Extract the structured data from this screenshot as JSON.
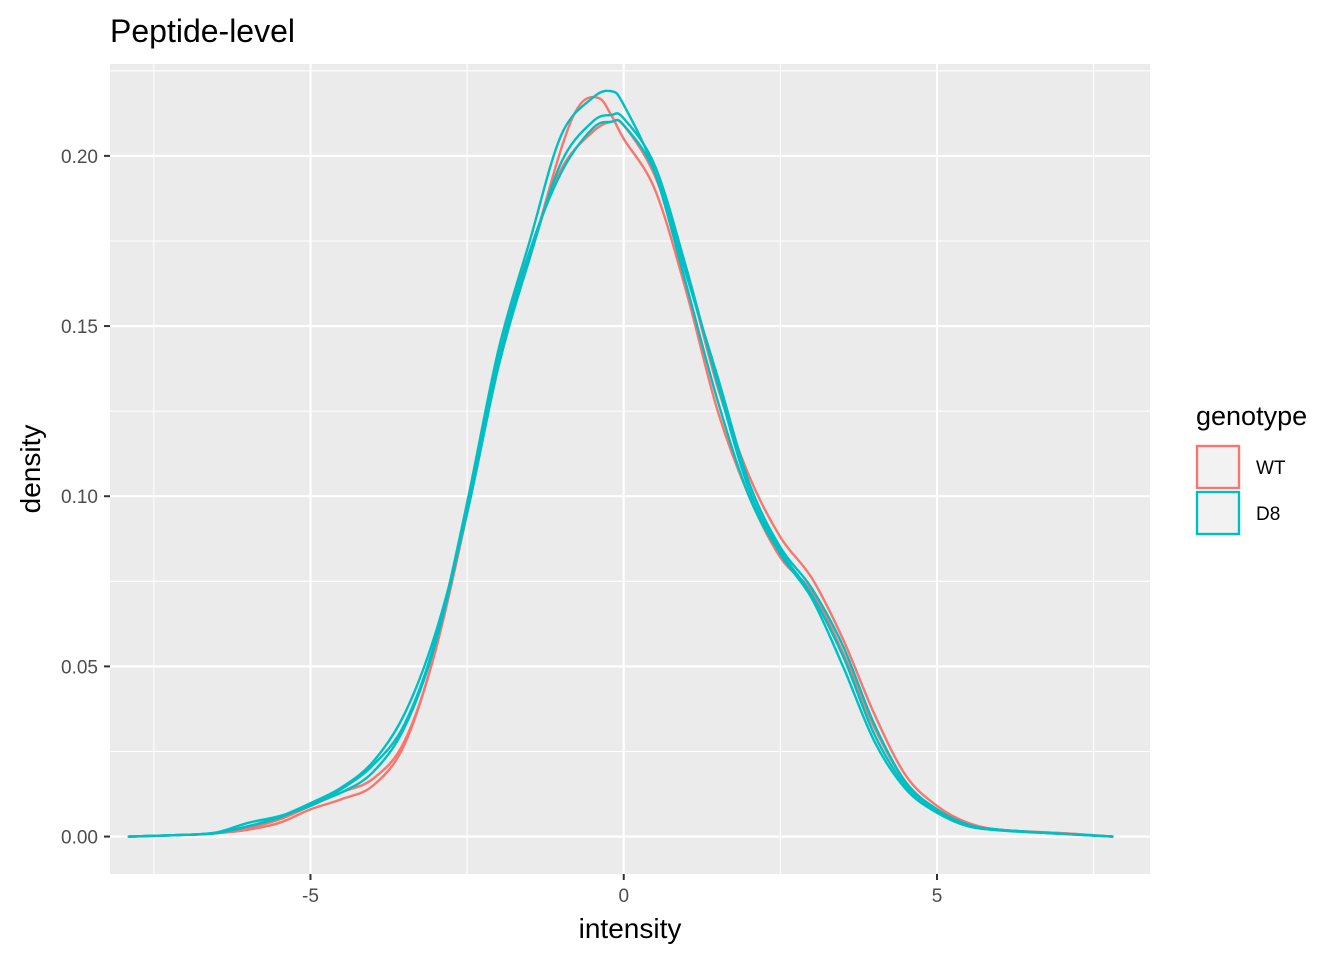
{
  "chart_data": {
    "type": "line",
    "title": "Peptide-level",
    "xlabel": "intensity",
    "ylabel": "density",
    "xlim": [
      -8.2,
      8.4
    ],
    "ylim": [
      -0.011,
      0.227
    ],
    "x_ticks": [
      -5,
      0,
      5
    ],
    "x_tick_labels": [
      "-5",
      "0",
      "5"
    ],
    "y_ticks": [
      0.0,
      0.05,
      0.1,
      0.15,
      0.2
    ],
    "y_tick_labels": [
      "0.00",
      "0.05",
      "0.10",
      "0.15",
      "0.20"
    ],
    "grid": true,
    "legend": {
      "title": "genotype",
      "position": "right",
      "entries": [
        {
          "label": "WT",
          "color": "#F8766D"
        },
        {
          "label": "D8",
          "color": "#00BFC4"
        }
      ]
    },
    "series": [
      {
        "group": "WT",
        "color": "#F8766D",
        "x": [
          -7.9,
          -7,
          -6.5,
          -6,
          -5.5,
          -5,
          -4.5,
          -4,
          -3.5,
          -3,
          -2.5,
          -2,
          -1.5,
          -1,
          -0.7,
          -0.4,
          -0.2,
          0,
          0.5,
          1,
          1.5,
          2,
          2.5,
          3,
          3.5,
          4,
          4.5,
          5,
          5.5,
          6,
          7,
          7.8
        ],
        "y": [
          0.0,
          0.0005,
          0.001,
          0.002,
          0.004,
          0.008,
          0.011,
          0.015,
          0.027,
          0.055,
          0.095,
          0.14,
          0.17,
          0.202,
          0.215,
          0.217,
          0.212,
          0.205,
          0.19,
          0.16,
          0.125,
          0.1,
          0.082,
          0.072,
          0.054,
          0.032,
          0.016,
          0.008,
          0.004,
          0.002,
          0.001,
          0.0
        ]
      },
      {
        "group": "WT",
        "color": "#F8766D",
        "x": [
          -7.9,
          -7,
          -6.5,
          -6,
          -5.5,
          -5,
          -4.5,
          -4,
          -3.5,
          -3,
          -2.5,
          -2,
          -1.5,
          -1,
          -0.5,
          -0.2,
          0,
          0.5,
          1,
          1.5,
          2,
          2.5,
          3,
          3.5,
          4,
          4.5,
          5,
          5.5,
          6,
          7,
          7.8
        ],
        "y": [
          0.0,
          0.0005,
          0.001,
          0.0025,
          0.005,
          0.009,
          0.013,
          0.017,
          0.028,
          0.055,
          0.098,
          0.142,
          0.172,
          0.196,
          0.207,
          0.21,
          0.209,
          0.194,
          0.166,
          0.132,
          0.106,
          0.088,
          0.076,
          0.058,
          0.036,
          0.018,
          0.009,
          0.004,
          0.002,
          0.001,
          0.0
        ]
      },
      {
        "group": "D8",
        "color": "#00BFC4",
        "x": [
          -7.9,
          -7,
          -6.5,
          -6,
          -5.5,
          -5,
          -4.5,
          -4,
          -3.5,
          -3,
          -2.5,
          -2,
          -1.5,
          -1,
          -0.5,
          -0.2,
          0,
          0.5,
          1,
          1.5,
          2,
          2.5,
          3,
          3.5,
          4,
          4.5,
          5,
          5.5,
          6,
          7,
          7.8
        ],
        "y": [
          0.0,
          0.0005,
          0.0012,
          0.004,
          0.006,
          0.009,
          0.014,
          0.021,
          0.033,
          0.058,
          0.098,
          0.143,
          0.175,
          0.206,
          0.217,
          0.219,
          0.215,
          0.195,
          0.162,
          0.128,
          0.1,
          0.083,
          0.07,
          0.05,
          0.028,
          0.014,
          0.007,
          0.003,
          0.002,
          0.0008,
          0.0
        ]
      },
      {
        "group": "D8",
        "color": "#00BFC4",
        "x": [
          -7.9,
          -7,
          -6.5,
          -6,
          -5.5,
          -5,
          -4.5,
          -4,
          -3.5,
          -3,
          -2.5,
          -2,
          -1.5,
          -1,
          -0.5,
          -0.2,
          0,
          0.5,
          1,
          1.5,
          2,
          2.5,
          3,
          3.5,
          4,
          4.5,
          5,
          5.5,
          6,
          7,
          7.8
        ],
        "y": [
          0.0,
          0.0005,
          0.001,
          0.003,
          0.0055,
          0.0095,
          0.013,
          0.019,
          0.032,
          0.057,
          0.096,
          0.14,
          0.172,
          0.195,
          0.208,
          0.21,
          0.209,
          0.195,
          0.165,
          0.135,
          0.104,
          0.085,
          0.073,
          0.056,
          0.033,
          0.016,
          0.008,
          0.0035,
          0.002,
          0.0008,
          0.0
        ]
      },
      {
        "group": "D8",
        "color": "#00BFC4",
        "x": [
          -7.9,
          -7,
          -6.5,
          -6,
          -5.5,
          -5,
          -4.5,
          -4,
          -3.5,
          -3,
          -2.5,
          -2,
          -1.5,
          -1,
          -0.5,
          -0.2,
          0,
          0.5,
          1,
          1.5,
          2,
          2.5,
          3,
          3.5,
          4,
          4.5,
          5,
          5.5,
          6,
          7,
          7.8
        ],
        "y": [
          0.0,
          0.0005,
          0.0011,
          0.003,
          0.0058,
          0.0098,
          0.0145,
          0.022,
          0.036,
          0.06,
          0.095,
          0.138,
          0.17,
          0.198,
          0.21,
          0.212,
          0.211,
          0.197,
          0.167,
          0.133,
          0.102,
          0.084,
          0.071,
          0.053,
          0.03,
          0.015,
          0.0075,
          0.0032,
          0.0018,
          0.0008,
          0.0
        ]
      }
    ]
  }
}
